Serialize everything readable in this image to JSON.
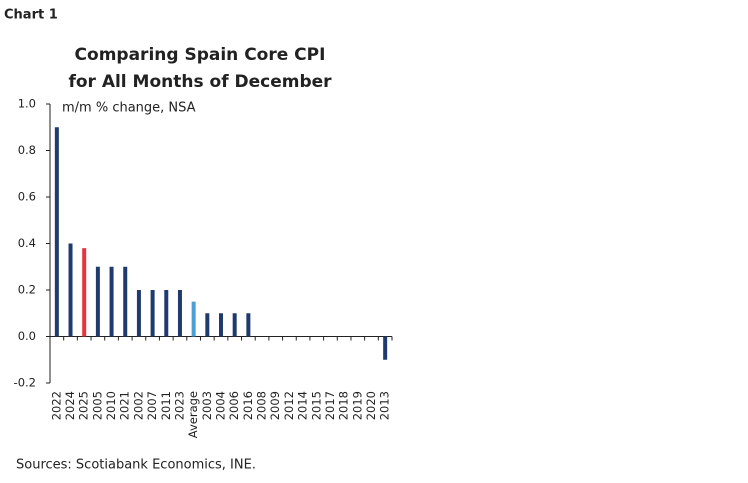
{
  "chart_label": "Chart 1",
  "chart_data": {
    "type": "bar",
    "title": [
      "Comparing Spain Core CPI",
      "for All Months of December"
    ],
    "subtitle": "m/m % change, NSA",
    "categories": [
      "2022",
      "2024",
      "2025",
      "2005",
      "2010",
      "2021",
      "2002",
      "2007",
      "2011",
      "2023",
      "Average",
      "2003",
      "2004",
      "2006",
      "2016",
      "2008",
      "2009",
      "2012",
      "2014",
      "2015",
      "2017",
      "2018",
      "2019",
      "2020",
      "2013"
    ],
    "values": [
      0.9,
      0.4,
      0.38,
      0.3,
      0.3,
      0.3,
      0.2,
      0.2,
      0.2,
      0.2,
      0.15,
      0.1,
      0.1,
      0.1,
      0.1,
      0,
      0,
      0,
      0,
      0,
      0,
      0,
      0,
      0,
      -0.1
    ],
    "colors": [
      "#1f3b6e",
      "#1f3b6e",
      "#e8323c",
      "#1f3b6e",
      "#1f3b6e",
      "#1f3b6e",
      "#1f3b6e",
      "#1f3b6e",
      "#1f3b6e",
      "#1f3b6e",
      "#4a9fd4",
      "#1f3b6e",
      "#1f3b6e",
      "#1f3b6e",
      "#1f3b6e",
      "#1f3b6e",
      "#1f3b6e",
      "#1f3b6e",
      "#1f3b6e",
      "#1f3b6e",
      "#1f3b6e",
      "#1f3b6e",
      "#1f3b6e",
      "#1f3b6e",
      "#1f3b6e"
    ],
    "ylim": [
      -0.2,
      1
    ],
    "yticks": [
      {
        "value": -0.2,
        "label": "-0.2"
      },
      {
        "value": 0,
        "label": "0.0"
      },
      0.2,
      0.4,
      0.6,
      0.8,
      {
        "value": 1,
        "label": "1.0"
      }
    ],
    "grid": false,
    "source": "Sources: Scotiabank Economics, INE."
  }
}
